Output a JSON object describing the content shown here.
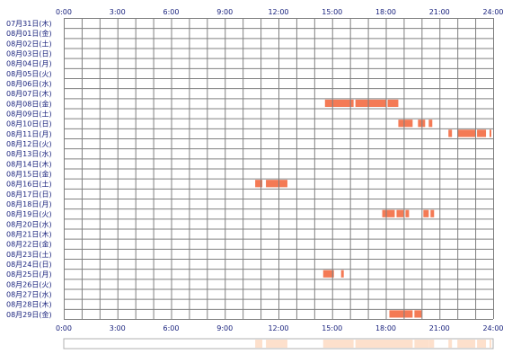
{
  "chart_data": {
    "type": "heatmap",
    "x_axis": {
      "min_hour": 0,
      "max_hour": 24,
      "tick_labels": [
        "0:00",
        "3:00",
        "6:00",
        "9:00",
        "12:00",
        "15:00",
        "18:00",
        "21:00",
        "24:00"
      ]
    },
    "grid": true,
    "colors": {
      "activity": "#f47a55",
      "grid": "#808080",
      "label": "#1a237e",
      "summary": "#fde0cc"
    },
    "rows": [
      {
        "date": "07月31日(木)",
        "segments": []
      },
      {
        "date": "08月01日(金)",
        "segments": []
      },
      {
        "date": "08月02日(土)",
        "segments": []
      },
      {
        "date": "08月03日(日)",
        "segments": []
      },
      {
        "date": "08月04日(月)",
        "segments": []
      },
      {
        "date": "08月05日(火)",
        "segments": []
      },
      {
        "date": "08月06日(水)",
        "segments": []
      },
      {
        "date": "08月07日(木)",
        "segments": []
      },
      {
        "date": "08月08日(金)",
        "segments": [
          [
            14.6,
            16.2
          ],
          [
            16.3,
            18.0
          ],
          [
            18.1,
            18.7
          ]
        ]
      },
      {
        "date": "08月09日(土)",
        "segments": []
      },
      {
        "date": "08月10日(日)",
        "segments": [
          [
            18.7,
            19.5
          ],
          [
            19.8,
            20.2
          ],
          [
            20.4,
            20.6
          ]
        ]
      },
      {
        "date": "08月11日(月)",
        "segments": [
          [
            21.5,
            21.7
          ],
          [
            22.0,
            23.0
          ],
          [
            23.1,
            23.6
          ],
          [
            23.8,
            23.9
          ]
        ]
      },
      {
        "date": "08月12日(火)",
        "segments": []
      },
      {
        "date": "08月13日(水)",
        "segments": []
      },
      {
        "date": "08月14日(木)",
        "segments": []
      },
      {
        "date": "08月15日(金)",
        "segments": []
      },
      {
        "date": "08月16日(土)",
        "segments": [
          [
            10.7,
            11.1
          ],
          [
            11.3,
            12.5
          ]
        ]
      },
      {
        "date": "08月17日(日)",
        "segments": []
      },
      {
        "date": "08月18日(月)",
        "segments": []
      },
      {
        "date": "08月19日(火)",
        "segments": [
          [
            17.8,
            18.5
          ],
          [
            18.6,
            19.0
          ],
          [
            19.1,
            19.3
          ],
          [
            20.1,
            20.4
          ],
          [
            20.5,
            20.7
          ]
        ]
      },
      {
        "date": "08月20日(水)",
        "segments": []
      },
      {
        "date": "08月21日(木)",
        "segments": []
      },
      {
        "date": "08月22日(金)",
        "segments": []
      },
      {
        "date": "08月23日(土)",
        "segments": []
      },
      {
        "date": "08月24日(日)",
        "segments": []
      },
      {
        "date": "08月25日(月)",
        "segments": [
          [
            14.5,
            15.1
          ],
          [
            15.5,
            15.65
          ]
        ]
      },
      {
        "date": "08月26日(火)",
        "segments": []
      },
      {
        "date": "08月27日(水)",
        "segments": []
      },
      {
        "date": "08月28日(木)",
        "segments": []
      },
      {
        "date": "08月29日(金)",
        "segments": [
          [
            18.2,
            19.5
          ],
          [
            19.6,
            20.0
          ]
        ]
      }
    ]
  }
}
